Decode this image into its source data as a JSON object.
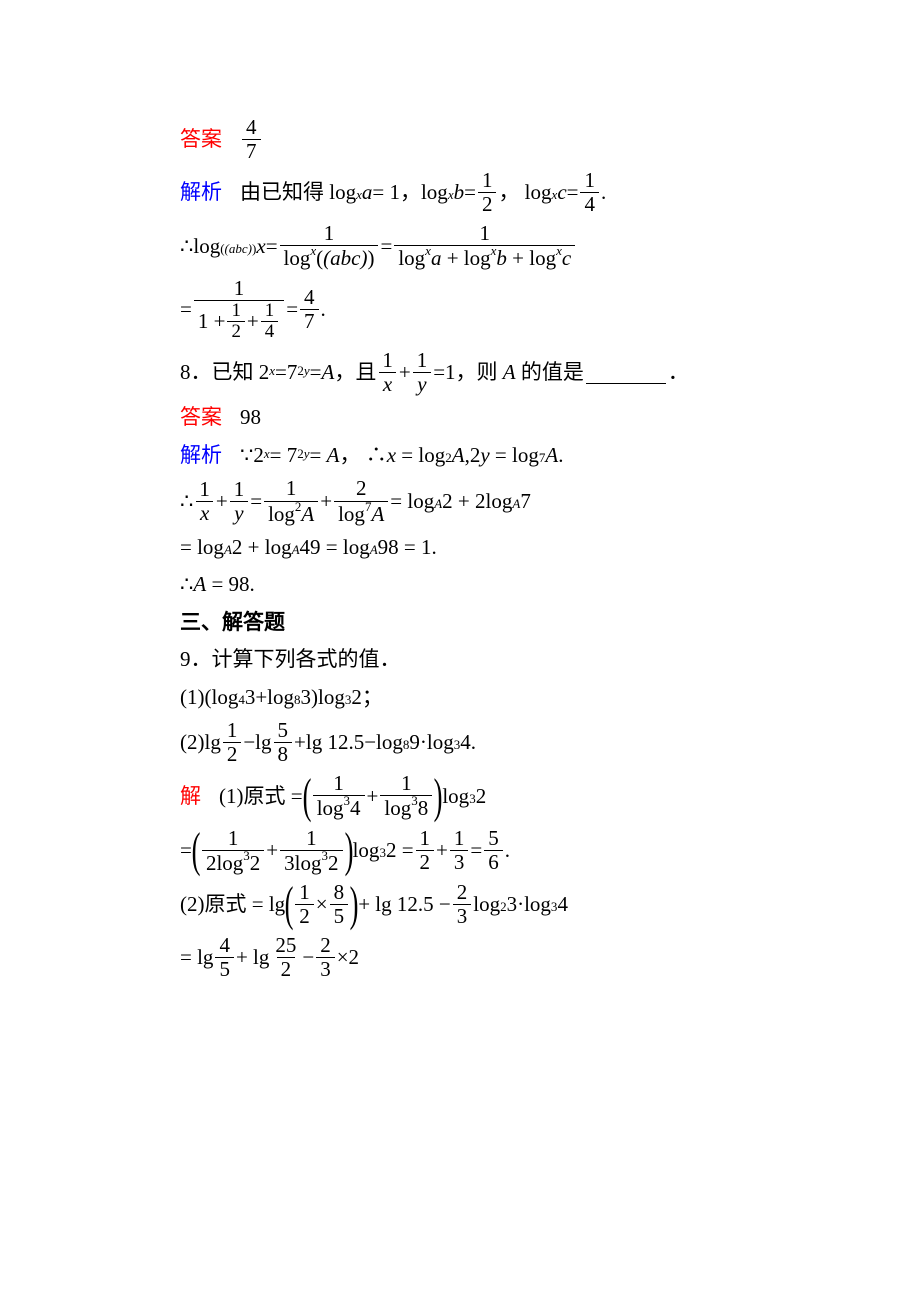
{
  "labels": {
    "answer": "答案",
    "analysis": "解析",
    "solve": "解"
  },
  "q7": {
    "ans_frac": {
      "num": "4",
      "den": "7"
    },
    "line1_a": "由已知得 log",
    "line1_b": "a",
    "line1_c": "= 1，log",
    "line1_d": "b",
    "line1_e": "=",
    "line1_f": "， log",
    "line1_g": "c",
    "line1_h": "=",
    "sub_x": "x",
    "half": {
      "num": "1",
      "den": "2"
    },
    "quarter": {
      "num": "1",
      "den": "4"
    },
    "line2_a": "∴log",
    "line2_sub": "(abc)",
    "line2_b": "x",
    "line2_c": "=",
    "line2_d": "=",
    "frac_a": {
      "num": "1",
      "den_a": "log",
      "den_sup": "x",
      "den_b": "(abc)"
    },
    "frac_b": {
      "num": "1",
      "den": "log^x a + log^x b + log^x c"
    },
    "line3_a": "=",
    "line3_b": "=",
    "frac_big_num": "1",
    "frac_big_den_a": "1 +",
    "four_sevenths": {
      "num": "4",
      "den": "7"
    }
  },
  "q8": {
    "question_a": "8．已知 2",
    "question_sup1": "x",
    "question_b": "=7",
    "question_sup2": "2y",
    "question_c": "=A，且",
    "question_d": "+",
    "question_e": "=1，则 A 的值是",
    "question_f": "．",
    "one_over_x": {
      "num": "1",
      "den": "x"
    },
    "one_over_y": {
      "num": "1",
      "den": "y"
    },
    "answer": "98",
    "l1_a": "∵2",
    "l1_b": " = 7",
    "l1_c": " = A，  ∴x = log",
    "l1_sub2": "2",
    "l1_d": "A,2y = log",
    "l1_sub7": "7",
    "l1_e": "A.",
    "l2_a": "∴",
    "l2_b": " + ",
    "l2_c": " = ",
    "l2_d": " + ",
    "l2_e": " = log",
    "l2_subA": "A",
    "l2_f": "2 + 2log",
    "l2_g": "7",
    "frac_log2A": {
      "num": "1",
      "den_a": "log",
      "den_sup": "2",
      "den_b": "A"
    },
    "frac_2log7A": {
      "num": "2",
      "den_a": "log",
      "den_sup": "7",
      "den_b": "A"
    },
    "l3_a": "= log",
    "l3_b": "2 + log",
    "l3_c": "49 = log",
    "l3_d": "98 = 1.",
    "l4": "∴A = 98."
  },
  "section3": "三、解答题",
  "q9": {
    "title": "9．计算下列各式的值．",
    "p1_a": "(1)(log",
    "p1_s4": "4",
    "p1_b": "3+log",
    "p1_s8": "8",
    "p1_c": "3)log",
    "p1_s3": "3",
    "p1_d": "2；",
    "p2_a": "(2)lg ",
    "p2_b": "−lg ",
    "p2_c": "+lg 12.5−log",
    "p2_s8": "8",
    "p2_d": "9·log",
    "p2_s3": "3",
    "p2_e": "4.",
    "half": {
      "num": "1",
      "den": "2"
    },
    "five_eighths": {
      "num": "5",
      "den": "8"
    },
    "s1_a": "(1)原式 =",
    "s1_b": "+",
    "s1_c": "log",
    "s1_d": "2",
    "frac_log34": {
      "num": "1",
      "den_a": "log",
      "den_sup": "3",
      "den_b": "4"
    },
    "frac_log38": {
      "num": "1",
      "den_a": "log",
      "den_sup": "3",
      "den_b": "8"
    },
    "s2_a": "=",
    "s2_b": "+",
    "s2_c": "log",
    "s2_d": "2 =",
    "s2_e": " + ",
    "s2_f": " = ",
    "s2_g": ".",
    "frac_2log32": {
      "num": "1",
      "den_a": "2log",
      "den_sup": "3",
      "den_b": "2"
    },
    "frac_3log32": {
      "num": "1",
      "den_a": "3log",
      "den_sup": "3",
      "den_b": "2"
    },
    "one_third": {
      "num": "1",
      "den": "3"
    },
    "five_sixths": {
      "num": "5",
      "den": "6"
    },
    "s3_a": "(2)原式 = lg ",
    "s3_b": "×",
    "s3_c": " + lg 12.5 −",
    "s3_d": "log",
    "s3_s2": "2",
    "s3_e": "3·log",
    "s3_s3": "3",
    "s3_f": "4",
    "eight_fifths": {
      "num": "8",
      "den": "5"
    },
    "two_thirds": {
      "num": "2",
      "den": "3"
    },
    "s4_a": "= lg ",
    "s4_b": " + lg ",
    "s4_c": " − ",
    "s4_d": "×2",
    "four_fifths": {
      "num": "4",
      "den": "5"
    },
    "twentyfive_half": {
      "num": "25",
      "den": "2"
    }
  },
  "style": {
    "font_size_pt": 16,
    "text_color": "#000000",
    "red": "#ff0000",
    "blue": "#0000ff",
    "background": "#ffffff"
  }
}
